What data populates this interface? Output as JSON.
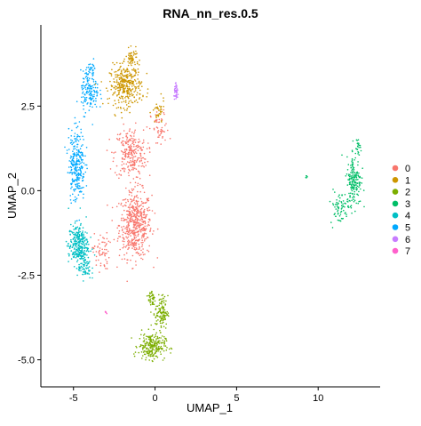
{
  "chart_data": {
    "type": "scatter",
    "title": "RNA_nn_res.0.5",
    "xlabel": "UMAP_1",
    "ylabel": "UMAP_2",
    "xlim": [
      -7.0,
      13.8
    ],
    "ylim": [
      -5.8,
      4.9
    ],
    "x_ticks": [
      -5,
      0,
      5,
      10
    ],
    "y_ticks": [
      -5.0,
      -2.5,
      0.0,
      2.5
    ],
    "x_tick_labels": [
      "-5",
      "0",
      "5",
      "10"
    ],
    "y_tick_labels": [
      "-5.0",
      "-2.5",
      "0.0",
      "2.5"
    ],
    "grid": false,
    "legend_position": "right",
    "series": [
      {
        "name": "0",
        "color": "#F8766D",
        "clusters": [
          {
            "center": [
              -1.2,
              -1.0
            ],
            "spread": [
              0.9,
              0.9
            ],
            "n": 520
          },
          {
            "center": [
              -1.5,
              1.1
            ],
            "spread": [
              0.9,
              0.7
            ],
            "n": 260
          },
          {
            "center": [
              -3.3,
              -1.8
            ],
            "spread": [
              0.45,
              0.5
            ],
            "n": 60
          },
          {
            "center": [
              0.3,
              1.8
            ],
            "spread": [
              0.5,
              0.5
            ],
            "n": 50
          }
        ]
      },
      {
        "name": "1",
        "color": "#CD9600",
        "clusters": [
          {
            "center": [
              -1.8,
              3.1
            ],
            "spread": [
              0.9,
              0.55
            ],
            "n": 330
          },
          {
            "center": [
              -1.4,
              3.9
            ],
            "spread": [
              0.35,
              0.25
            ],
            "n": 60
          },
          {
            "center": [
              0.2,
              2.3
            ],
            "spread": [
              0.35,
              0.35
            ],
            "n": 35
          }
        ]
      },
      {
        "name": "2",
        "color": "#7CAE00",
        "clusters": [
          {
            "center": [
              -0.2,
              -4.6
            ],
            "spread": [
              0.75,
              0.35
            ],
            "n": 240
          },
          {
            "center": [
              0.4,
              -3.6
            ],
            "spread": [
              0.35,
              0.45
            ],
            "n": 120
          },
          {
            "center": [
              -0.2,
              -3.2
            ],
            "spread": [
              0.2,
              0.3
            ],
            "n": 40
          }
        ]
      },
      {
        "name": "3",
        "color": "#00BE67",
        "clusters": [
          {
            "center": [
              12.2,
              0.3
            ],
            "spread": [
              0.4,
              0.65
            ],
            "n": 180
          },
          {
            "center": [
              11.3,
              -0.5
            ],
            "spread": [
              0.5,
              0.45
            ],
            "n": 70
          },
          {
            "center": [
              12.4,
              1.3
            ],
            "spread": [
              0.2,
              0.2
            ],
            "n": 25
          },
          {
            "center": [
              9.3,
              0.4
            ],
            "spread": [
              0.08,
              0.05
            ],
            "n": 5
          }
        ]
      },
      {
        "name": "4",
        "color": "#00BFC4",
        "clusters": [
          {
            "center": [
              -4.7,
              -1.6
            ],
            "spread": [
              0.55,
              0.55
            ],
            "n": 300
          },
          {
            "center": [
              -4.3,
              -2.3
            ],
            "spread": [
              0.35,
              0.3
            ],
            "n": 60
          }
        ]
      },
      {
        "name": "5",
        "color": "#00A9FF",
        "clusters": [
          {
            "center": [
              -4.8,
              0.8
            ],
            "spread": [
              0.45,
              1.0
            ],
            "n": 280
          },
          {
            "center": [
              -4.0,
              2.9
            ],
            "spread": [
              0.5,
              0.55
            ],
            "n": 140
          },
          {
            "center": [
              -3.9,
              3.6
            ],
            "spread": [
              0.3,
              0.2
            ],
            "n": 30
          }
        ]
      },
      {
        "name": "6",
        "color": "#C77CFF",
        "clusters": [
          {
            "center": [
              1.3,
              2.9
            ],
            "spread": [
              0.12,
              0.2
            ],
            "n": 40
          }
        ]
      },
      {
        "name": "7",
        "color": "#FF61CC",
        "clusters": [
          {
            "center": [
              -3.0,
              -3.6
            ],
            "spread": [
              0.05,
              0.05
            ],
            "n": 5
          }
        ]
      }
    ]
  }
}
